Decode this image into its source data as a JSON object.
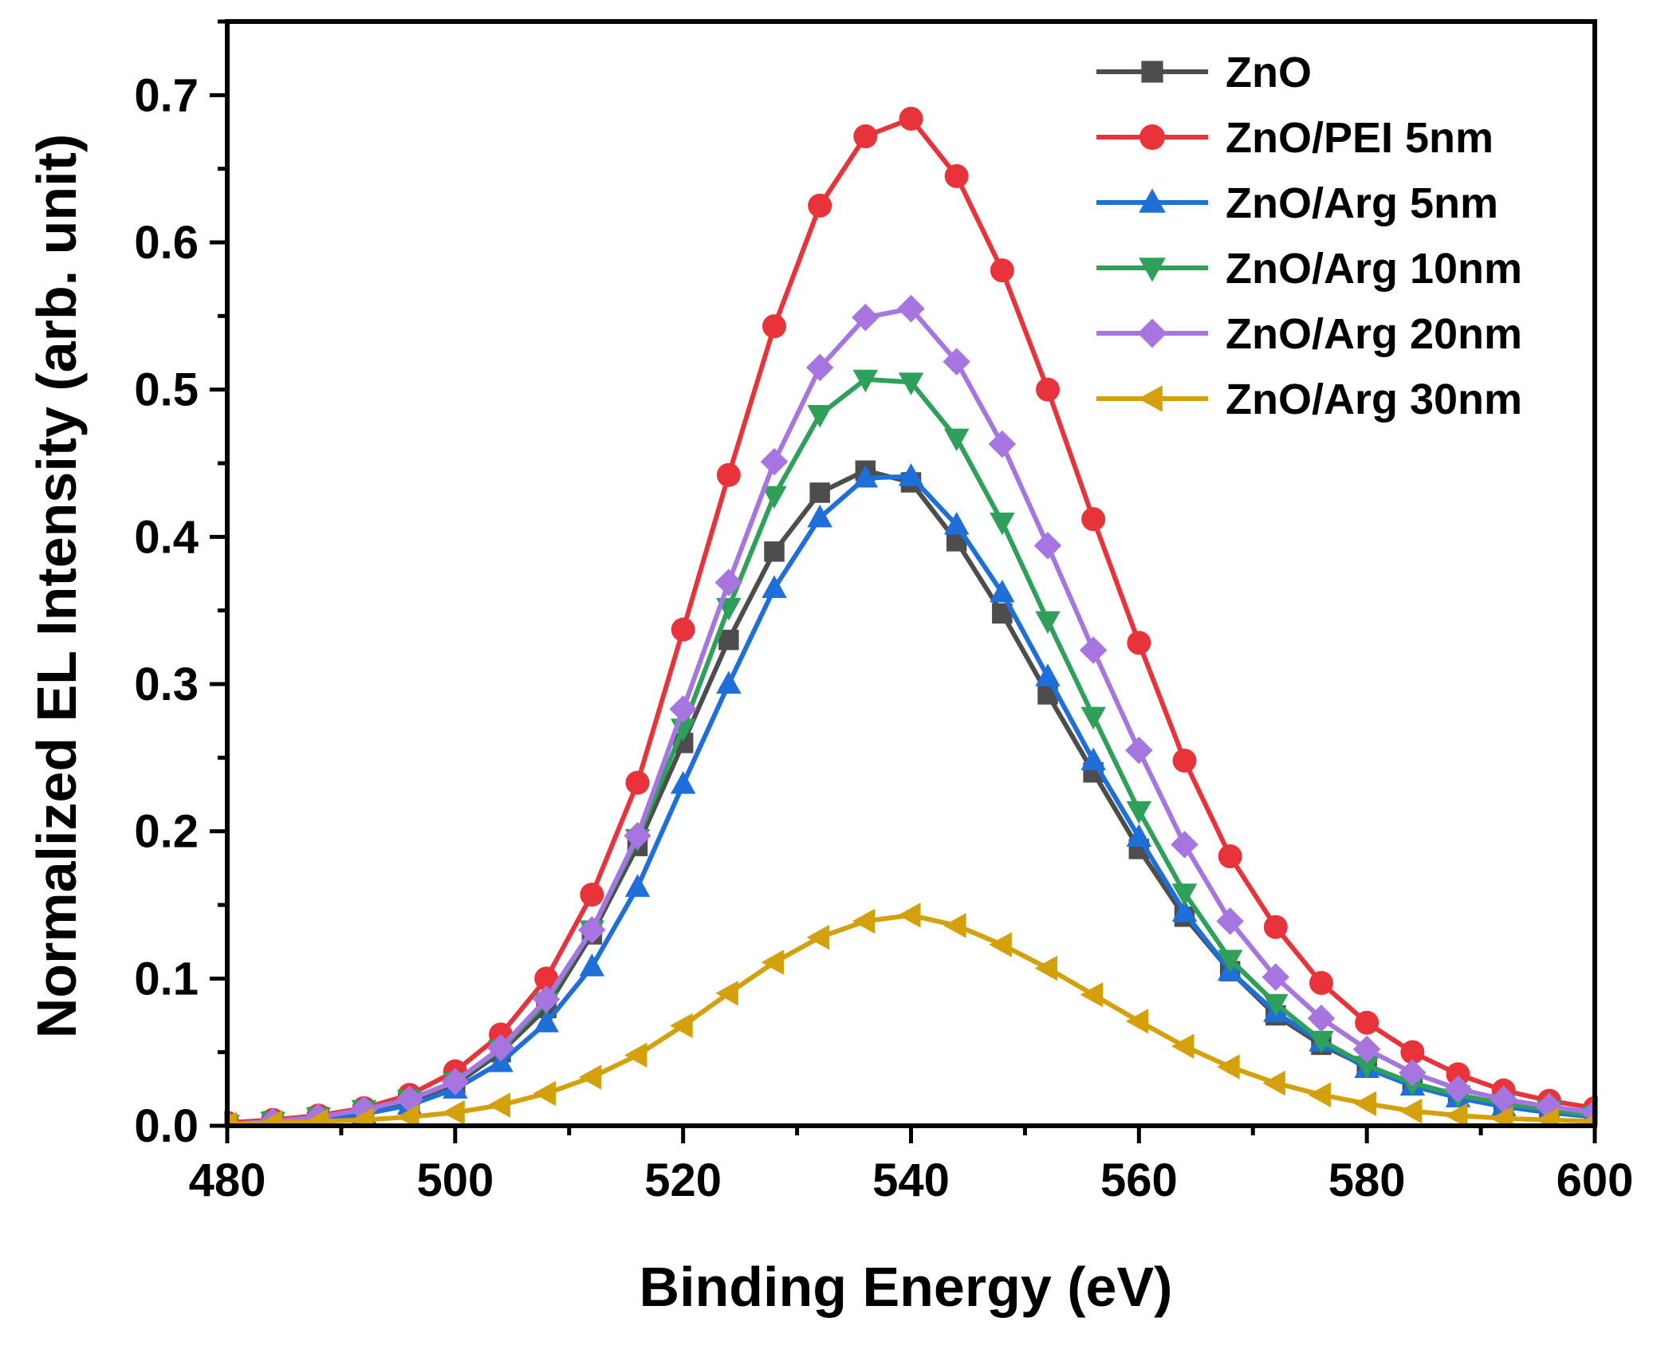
{
  "chart_data": {
    "type": "line",
    "xlabel": "Binding Energy (eV)",
    "ylabel": "Normalized EL Intensity (arb. unit)",
    "xlim": [
      480,
      600
    ],
    "ylim": [
      0,
      0.75
    ],
    "xticks": [
      480,
      500,
      520,
      540,
      560,
      580,
      600
    ],
    "xtick_labels": [
      "480",
      "500",
      "520",
      "540",
      "560",
      "580",
      "600"
    ],
    "yticks": [
      0,
      0.1,
      0.2,
      0.3,
      0.4,
      0.5,
      0.6,
      0.7
    ],
    "ytick_labels": [
      "0.0",
      "0.1",
      "0.2",
      "0.3",
      "0.4",
      "0.5",
      "0.6",
      "0.7"
    ],
    "legend_position": "top-right",
    "grid": false,
    "x": [
      480,
      484,
      488,
      492,
      496,
      500,
      504,
      508,
      512,
      516,
      520,
      524,
      528,
      532,
      536,
      540,
      544,
      548,
      552,
      556,
      560,
      564,
      568,
      572,
      576,
      580,
      584,
      588,
      592,
      596,
      600
    ],
    "series": [
      {
        "name": "ZnO",
        "color": "#4d4d4d",
        "marker": "square",
        "values": [
          0.001,
          0.003,
          0.006,
          0.01,
          0.016,
          0.028,
          0.05,
          0.08,
          0.13,
          0.19,
          0.26,
          0.33,
          0.39,
          0.43,
          0.445,
          0.437,
          0.397,
          0.348,
          0.293,
          0.24,
          0.188,
          0.142,
          0.105,
          0.075,
          0.055,
          0.04,
          0.028,
          0.02,
          0.014,
          0.01,
          0.007
        ]
      },
      {
        "name": "ZnO/PEI 5nm",
        "color": "#e8333b",
        "marker": "circle",
        "values": [
          0.002,
          0.004,
          0.007,
          0.012,
          0.021,
          0.037,
          0.062,
          0.1,
          0.157,
          0.233,
          0.337,
          0.442,
          0.543,
          0.625,
          0.672,
          0.684,
          0.645,
          0.581,
          0.5,
          0.412,
          0.328,
          0.248,
          0.183,
          0.135,
          0.097,
          0.07,
          0.05,
          0.035,
          0.024,
          0.017,
          0.012
        ]
      },
      {
        "name": "ZnO/Arg 5nm",
        "color": "#1e6fd9",
        "marker": "triangle-up",
        "values": [
          0.001,
          0.002,
          0.004,
          0.008,
          0.014,
          0.025,
          0.043,
          0.07,
          0.108,
          0.162,
          0.232,
          0.3,
          0.365,
          0.413,
          0.44,
          0.441,
          0.408,
          0.362,
          0.305,
          0.248,
          0.196,
          0.145,
          0.105,
          0.077,
          0.057,
          0.039,
          0.027,
          0.019,
          0.013,
          0.009,
          0.006
        ]
      },
      {
        "name": "ZnO/Arg 10nm",
        "color": "#2ea05a",
        "marker": "triangle-down",
        "values": [
          0.001,
          0.003,
          0.006,
          0.011,
          0.018,
          0.03,
          0.052,
          0.084,
          0.133,
          0.195,
          0.27,
          0.352,
          0.428,
          0.483,
          0.507,
          0.505,
          0.467,
          0.41,
          0.343,
          0.278,
          0.214,
          0.158,
          0.113,
          0.083,
          0.058,
          0.041,
          0.029,
          0.021,
          0.015,
          0.011,
          0.007
        ]
      },
      {
        "name": "ZnO/Arg 20nm",
        "color": "#a675e0",
        "marker": "diamond",
        "values": [
          0.001,
          0.003,
          0.006,
          0.011,
          0.018,
          0.03,
          0.053,
          0.086,
          0.133,
          0.197,
          0.283,
          0.369,
          0.451,
          0.515,
          0.549,
          0.555,
          0.519,
          0.463,
          0.394,
          0.323,
          0.255,
          0.191,
          0.139,
          0.101,
          0.073,
          0.052,
          0.036,
          0.025,
          0.018,
          0.013,
          0.009
        ]
      },
      {
        "name": "ZnO/Arg 30nm",
        "color": "#d4a00c",
        "marker": "triangle-left",
        "values": [
          0.001,
          0.002,
          0.003,
          0.004,
          0.006,
          0.009,
          0.014,
          0.022,
          0.033,
          0.048,
          0.068,
          0.09,
          0.111,
          0.128,
          0.139,
          0.143,
          0.136,
          0.123,
          0.107,
          0.089,
          0.071,
          0.054,
          0.04,
          0.029,
          0.021,
          0.015,
          0.01,
          0.007,
          0.005,
          0.004,
          0.003
        ]
      }
    ]
  }
}
